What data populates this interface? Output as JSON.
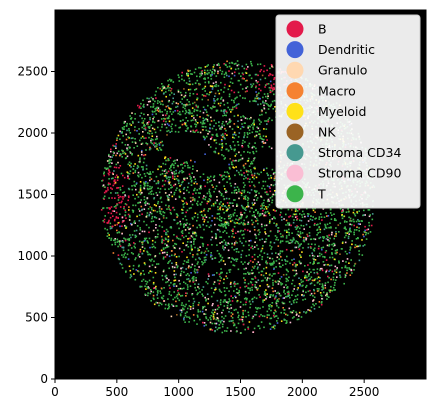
{
  "plot": {
    "xlim": [
      0,
      3000
    ],
    "ylim": [
      0,
      3000
    ],
    "background": "#000000",
    "tissue_center": [
      1475,
      1485
    ],
    "tissue_radius": 1110,
    "x_ticks": [
      {
        "value": 0,
        "label": "0"
      },
      {
        "value": 500,
        "label": "500"
      },
      {
        "value": 1000,
        "label": "1000"
      },
      {
        "value": 1500,
        "label": "1500"
      },
      {
        "value": 2000,
        "label": "2000"
      },
      {
        "value": 2500,
        "label": "2500"
      }
    ],
    "y_ticks": [
      {
        "value": 0,
        "label": "0"
      },
      {
        "value": 500,
        "label": "500"
      },
      {
        "value": 1000,
        "label": "1000"
      },
      {
        "value": 1500,
        "label": "1500"
      },
      {
        "value": 2000,
        "label": "2000"
      },
      {
        "value": 2500,
        "label": "2500"
      }
    ]
  },
  "legend": {
    "placement": "top-right",
    "entries": [
      {
        "label": "B",
        "color": "#e31a4a",
        "weight": 4
      },
      {
        "label": "Dendritic",
        "color": "#4363d8",
        "weight": 2
      },
      {
        "label": "Granulo",
        "color": "#ffd8b1",
        "weight": 3
      },
      {
        "label": "Macro",
        "color": "#f58231",
        "weight": 3
      },
      {
        "label": "Myeloid",
        "color": "#ffe119",
        "weight": 5
      },
      {
        "label": "NK",
        "color": "#9a6324",
        "weight": 1
      },
      {
        "label": "Stroma CD34",
        "color": "#469990",
        "weight": 5
      },
      {
        "label": "Stroma CD90",
        "color": "#fabed4",
        "weight": 7
      },
      {
        "label": "T",
        "color": "#3cb44b",
        "weight": 60
      }
    ]
  }
}
